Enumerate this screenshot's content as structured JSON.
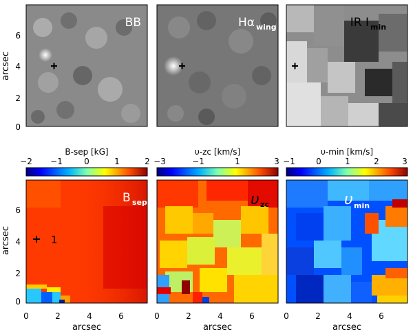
{
  "top_row": {
    "y_axis_label": "arcsec",
    "y_ticks": [
      "0",
      "2",
      "4",
      "6"
    ],
    "panels": [
      {
        "label": "BB",
        "label_sub": ""
      },
      {
        "label": "Hα",
        "label_sub": "wing"
      },
      {
        "label": "IR  I",
        "label_sub": "min"
      }
    ]
  },
  "bottom_row": {
    "y_axis_label": "arcsec",
    "x_axis_label": "arcsec",
    "y_ticks": [
      "0",
      "2",
      "4",
      "6"
    ],
    "x_ticks": [
      "0",
      "2",
      "4",
      "6"
    ],
    "panels": [
      {
        "label": "B",
        "label_sub": "sep",
        "marker_label": "1"
      },
      {
        "label": "υ",
        "label_sub": "zc"
      },
      {
        "label": "υ",
        "label_sub": "min"
      }
    ]
  },
  "colorbars": [
    {
      "title": "B-sep [kG]",
      "ticks": [
        "−2",
        "−1",
        "0",
        "1",
        "2"
      ]
    },
    {
      "title": "υ-zc [km/s]",
      "ticks": [
        "−3",
        "−1",
        "1",
        "3"
      ]
    },
    {
      "title": "υ-min [km/s]",
      "ticks": [
        "−1",
        "0",
        "1",
        "2",
        "3"
      ]
    }
  ]
}
